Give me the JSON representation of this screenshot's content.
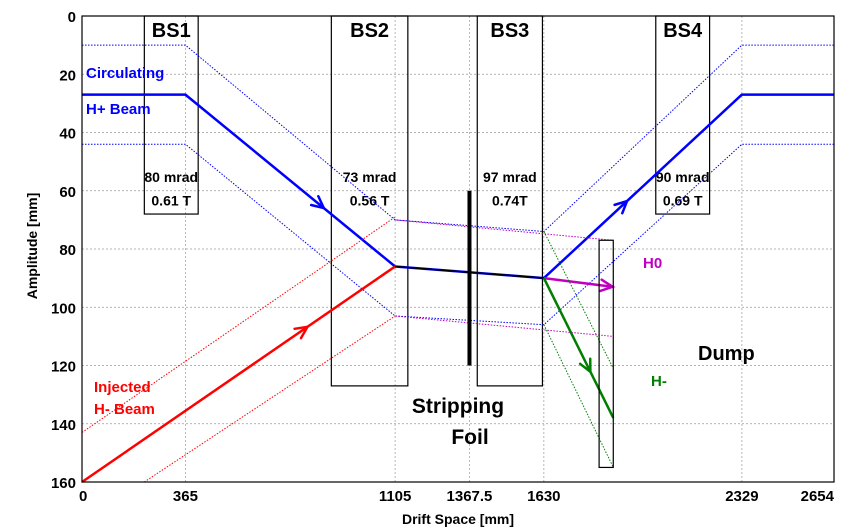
{
  "chart_data": {
    "type": "line",
    "xlabel": "Drift Space [mm]",
    "ylabel": "Amplitude [mm]",
    "xlim": [
      0,
      2654
    ],
    "ylim": [
      160,
      0
    ],
    "y_inverted": true,
    "grid": "dotted",
    "xticks": [
      0,
      365,
      1105,
      1367.5,
      1630,
      2329,
      2654
    ],
    "xtick_labels": [
      "0",
      "365",
      "1105",
      "1367.5",
      "1630",
      "2329",
      "2654"
    ],
    "yticks": [
      0,
      20,
      40,
      60,
      80,
      100,
      120,
      140,
      160
    ],
    "ytick_labels": [
      "0",
      "20",
      "40",
      "60",
      "80",
      "100",
      "120",
      "140",
      "160"
    ],
    "colors": {
      "circulating": "#0000ff",
      "injected": "#ff0000",
      "h0": "#c000c0",
      "hminus": "#008000",
      "box": "#000000"
    },
    "magnets": [
      {
        "name": "BS1",
        "x0": 220,
        "x1": 410,
        "y0": 0,
        "y1": 68,
        "angle": "80 mrad",
        "field": "0.61 T"
      },
      {
        "name": "BS2",
        "x0": 880,
        "x1": 1150,
        "y0": 0,
        "y1": 127,
        "angle": "73 mrad",
        "field": "0.56 T"
      },
      {
        "name": "BS3",
        "x0": 1395,
        "x1": 1625,
        "y0": 0,
        "y1": 127,
        "angle": "97 mrad",
        "field": "0.74T"
      },
      {
        "name": "BS4",
        "x0": 2025,
        "x1": 2215,
        "y0": 0,
        "y1": 68,
        "angle": "90 mrad",
        "field": "0.69 T"
      }
    ],
    "dump": {
      "label": "Dump",
      "x0": 1825,
      "x1": 1875,
      "y0": 77,
      "y1": 155
    },
    "foil": {
      "label_line1": "Stripping",
      "label_line2": "Foil",
      "x": 1367.5,
      "y0": 60,
      "y1": 120
    },
    "labels": {
      "circulating_line1": "Circulating",
      "circulating_line2": "H+ Beam",
      "injected_line1": "Injected",
      "injected_line2": "H- Beam",
      "h0": "H0",
      "hminus": "H-"
    },
    "series": [
      {
        "name": "H+ Beam",
        "color": "#0000ff",
        "width": 2.5,
        "style": "solid",
        "points": [
          [
            0,
            27
          ],
          [
            365,
            27
          ],
          [
            1105,
            86
          ],
          [
            1630,
            90
          ],
          [
            2329,
            27
          ],
          [
            2654,
            27
          ]
        ]
      },
      {
        "name": "",
        "color": "#0000ff",
        "width": 1,
        "style": "dotted",
        "points": [
          [
            0,
            10
          ],
          [
            365,
            10
          ],
          [
            1105,
            70
          ],
          [
            1630,
            74
          ],
          [
            2329,
            10
          ],
          [
            2654,
            10
          ]
        ]
      },
      {
        "name": "",
        "color": "#0000ff",
        "width": 1,
        "style": "dotted",
        "points": [
          [
            0,
            44
          ],
          [
            365,
            44
          ],
          [
            1105,
            103
          ],
          [
            1630,
            106
          ],
          [
            2329,
            44
          ],
          [
            2654,
            44
          ]
        ]
      },
      {
        "name": "H- Beam",
        "color": "#ff0000",
        "width": 2.5,
        "style": "solid",
        "points": [
          [
            0,
            160
          ],
          [
            1105,
            86
          ]
        ]
      },
      {
        "name": "",
        "color": "#ff0000",
        "width": 1,
        "style": "dotted",
        "points": [
          [
            0,
            143
          ],
          [
            1105,
            69
          ]
        ]
      },
      {
        "name": "",
        "color": "#ff0000",
        "width": 1,
        "style": "dotted",
        "points": [
          [
            220,
            160
          ],
          [
            1105,
            103
          ]
        ]
      },
      {
        "name": "",
        "color": "#000000",
        "width": 1.6,
        "style": "solid",
        "points": [
          [
            1105,
            86
          ],
          [
            1630,
            90
          ]
        ]
      },
      {
        "name": "H0",
        "color": "#c000c0",
        "width": 2.5,
        "style": "solid",
        "points": [
          [
            1630,
            90
          ],
          [
            1875,
            93
          ]
        ]
      },
      {
        "name": "",
        "color": "#c000c0",
        "width": 1,
        "style": "dotted",
        "points": [
          [
            1105,
            70
          ],
          [
            1875,
            77
          ]
        ]
      },
      {
        "name": "",
        "color": "#c000c0",
        "width": 1,
        "style": "dotted",
        "points": [
          [
            1105,
            103
          ],
          [
            1875,
            110
          ]
        ]
      },
      {
        "name": "H-",
        "color": "#008000",
        "width": 2.5,
        "style": "solid",
        "points": [
          [
            1630,
            90
          ],
          [
            1875,
            138
          ]
        ]
      },
      {
        "name": "",
        "color": "#008000",
        "width": 1,
        "style": "dotted",
        "points": [
          [
            1630,
            74
          ],
          [
            1875,
            121
          ]
        ]
      },
      {
        "name": "",
        "color": "#008000",
        "width": 1,
        "style": "dotted",
        "points": [
          [
            1630,
            106
          ],
          [
            1875,
            155
          ]
        ]
      }
    ],
    "arrows": [
      {
        "color": "#0000ff",
        "from": [
          365,
          27
        ],
        "to": [
          1105,
          86
        ],
        "t": 0.66
      },
      {
        "color": "#0000ff",
        "from": [
          1630,
          90
        ],
        "to": [
          2329,
          27
        ],
        "t": 0.42
      },
      {
        "color": "#ff0000",
        "from": [
          0,
          160
        ],
        "to": [
          1105,
          86
        ],
        "t": 0.72
      },
      {
        "color": "#c000c0",
        "from": [
          1630,
          90
        ],
        "to": [
          1875,
          93
        ],
        "t": 0.99
      },
      {
        "color": "#008000",
        "from": [
          1630,
          90
        ],
        "to": [
          1875,
          138
        ],
        "t": 0.67
      }
    ]
  }
}
